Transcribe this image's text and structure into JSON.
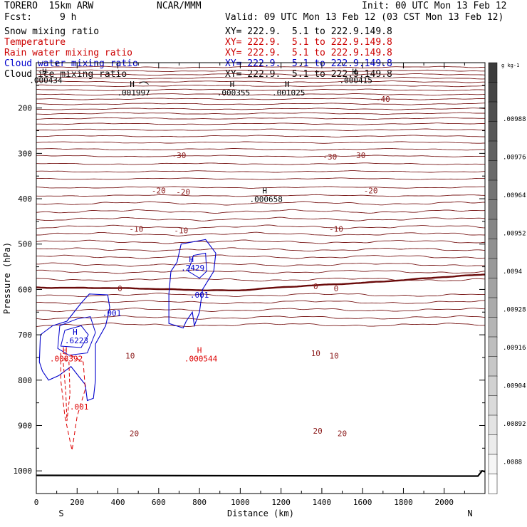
{
  "header": {
    "model": "TORERO  15km ARW",
    "org": "NCAR/MMM",
    "init": "Init: 00 UTC Mon 13 Feb 12",
    "fcst_label": "Fcst:",
    "fcst_value": "9 h",
    "valid": "Valid: 09 UTC Mon 13 Feb 12 (03 CST Mon 13 Feb 12)"
  },
  "fields": [
    {
      "name": "Snow mixing ratio",
      "xy": "XY= 222.9.  5.1 to 222.9.149.8",
      "color": "#000000"
    },
    {
      "name": "Temperature",
      "xy": "XY= 222.9.  5.1 to 222.9.149.8",
      "color": "#cc0000"
    },
    {
      "name": "Rain water mixing ratio",
      "xy": "XY= 222.9.  5.1 to 222.9.149.8",
      "color": "#cc0000"
    },
    {
      "name": "Cloud water mixing ratio",
      "xy": "XY= 222.9.  5.1 to 222.9.149.8",
      "color": "#0000cc"
    },
    {
      "name": "Cloud ice mixing ratio",
      "xy": "XY= 222.9.  5.1 to 222.9.149.8",
      "color": "#000000"
    }
  ],
  "chart_data": {
    "type": "contour",
    "xlabel": "Distance (km)",
    "ylabel": "Pressure (hPa)",
    "xlim": [
      0,
      2200
    ],
    "ylim": [
      1050,
      100
    ],
    "x_ticks": [
      0,
      200,
      400,
      600,
      800,
      1000,
      1200,
      1400,
      1600,
      1800,
      2000
    ],
    "y_ticks": [
      200,
      300,
      400,
      500,
      600,
      700,
      800,
      900,
      1000
    ],
    "start_label": "S",
    "end_label": "N",
    "temperature_contours": [
      {
        "level": -40,
        "label": "-40",
        "labels_x": [
          1700
        ]
      },
      {
        "level": -30,
        "label": "-30",
        "labels_x": [
          700,
          1440,
          1580
        ]
      },
      {
        "level": -20,
        "label": "-20",
        "labels_x": [
          600,
          720,
          1640
        ]
      },
      {
        "level": -10,
        "label": "-10",
        "labels_x": [
          490,
          710,
          1470
        ]
      },
      {
        "level": 0,
        "label": "0",
        "labels_x": [
          410,
          1370,
          1470
        ]
      },
      {
        "level": 10,
        "label": "10",
        "labels_x": [
          460,
          1370,
          1460
        ]
      },
      {
        "level": 20,
        "label": "20",
        "labels_x": [
          480,
          1380,
          1500
        ]
      }
    ],
    "highs": [
      {
        "field": "snow",
        "label": "H",
        "value": ".001997",
        "x": 470,
        "p": 153
      },
      {
        "field": "snow",
        "label": "H",
        "value": ".000355",
        "x": 960,
        "p": 153
      },
      {
        "field": "snow",
        "label": "H",
        "value": ".001025",
        "x": 1230,
        "p": 153
      },
      {
        "field": "snow",
        "label": "H",
        "value": ".000658",
        "x": 1120,
        "p": 388
      },
      {
        "field": "snow",
        "label": "H",
        "value": ".000434",
        "x": 40,
        "p": 126
      },
      {
        "field": "snow",
        "label": "H",
        "value": ".000415",
        "x": 1560,
        "p": 126
      },
      {
        "field": "cloud_water",
        "label": "H",
        "value": ".2429",
        "x": 760,
        "p": 540
      },
      {
        "field": "cloud_water",
        "label": "H",
        "value": ".6223",
        "x": 190,
        "p": 700
      },
      {
        "field": "rain",
        "label": "H",
        "value": ".008392",
        "x": 140,
        "p": 740
      },
      {
        "field": "rain",
        "label": "H",
        "value": ".000544",
        "x": 800,
        "p": 740
      }
    ],
    "contour_labels": [
      {
        "field": "cloud_water",
        "value": ".001",
        "x": 370,
        "p": 658
      },
      {
        "field": "cloud_water",
        "value": ".001",
        "x": 800,
        "p": 618
      },
      {
        "field": "rain",
        "value": ".001",
        "x": 210,
        "p": 865
      }
    ],
    "colorbar": {
      "unit": "g kg-1",
      "ticks": [
        ".00988",
        ".00976",
        ".00964",
        ".00952",
        ".0094",
        ".00928",
        ".00916",
        ".00904",
        ".00892",
        ".0088"
      ]
    }
  }
}
